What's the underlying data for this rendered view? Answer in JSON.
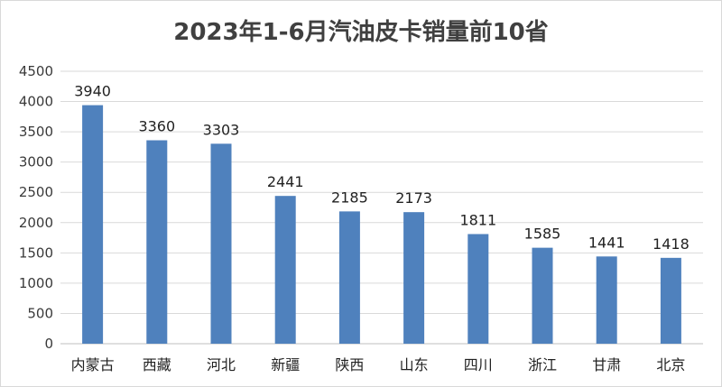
{
  "chart_data": {
    "type": "bar",
    "title": "2023年1-6月汽油皮卡销量前10省",
    "categories": [
      "内蒙古",
      "西藏",
      "河北",
      "新疆",
      "陕西",
      "山东",
      "四川",
      "浙江",
      "甘肃",
      "北京"
    ],
    "values": [
      3940,
      3360,
      3303,
      2441,
      2185,
      2173,
      1811,
      1585,
      1441,
      1418
    ],
    "ylim": [
      0,
      4500
    ],
    "yticks": [
      0,
      500,
      1000,
      1500,
      2000,
      2500,
      3000,
      3500,
      4000,
      4500
    ],
    "grid": true,
    "legend": "none",
    "data_labels": true,
    "bar_color": "#4f81bd",
    "gridline_color": "#d9d9d9"
  }
}
